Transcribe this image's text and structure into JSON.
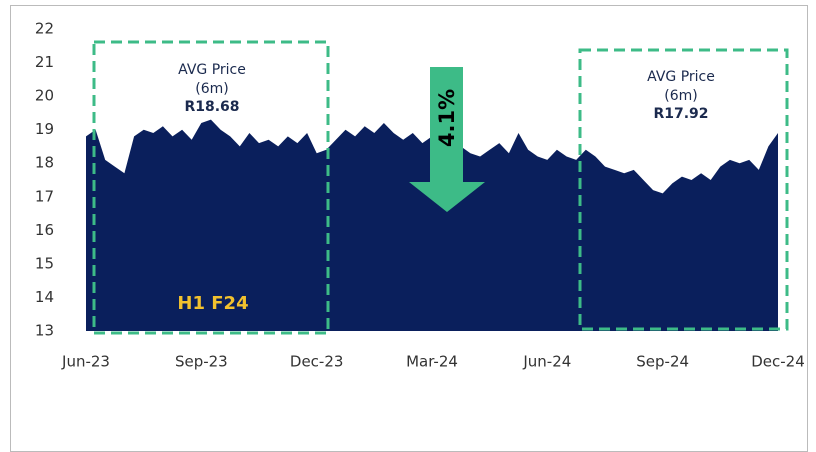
{
  "chart_data": {
    "type": "area",
    "categories": [
      "Jun-23",
      null,
      null,
      null,
      null,
      null,
      null,
      null,
      null,
      null,
      null,
      null,
      "Sep-23",
      null,
      null,
      null,
      null,
      null,
      null,
      null,
      null,
      null,
      null,
      null,
      "Dec-23",
      null,
      null,
      null,
      null,
      null,
      null,
      null,
      null,
      null,
      null,
      null,
      "Mar-24",
      null,
      null,
      null,
      null,
      null,
      null,
      null,
      null,
      null,
      null,
      null,
      "Jun-24",
      null,
      null,
      null,
      null,
      null,
      null,
      null,
      null,
      null,
      null,
      null,
      "Sep-24",
      null,
      null,
      null,
      null,
      null,
      null,
      null,
      null,
      null,
      null,
      null,
      "Dec-24"
    ],
    "values": [
      18.8,
      19.0,
      18.1,
      17.9,
      17.7,
      18.8,
      19.0,
      18.9,
      19.1,
      18.8,
      19.0,
      18.7,
      19.2,
      19.3,
      19.0,
      18.8,
      18.5,
      18.9,
      18.6,
      18.7,
      18.5,
      18.8,
      18.6,
      18.9,
      18.3,
      18.4,
      18.7,
      19.0,
      18.8,
      19.1,
      18.9,
      19.2,
      18.9,
      18.7,
      18.9,
      18.6,
      18.8,
      18.7,
      18.6,
      18.5,
      18.3,
      18.2,
      18.4,
      18.6,
      18.3,
      18.9,
      18.4,
      18.2,
      18.1,
      18.4,
      18.2,
      18.1,
      18.4,
      18.2,
      17.9,
      17.8,
      17.7,
      17.8,
      17.5,
      17.2,
      17.1,
      17.4,
      17.6,
      17.5,
      17.7,
      17.5,
      17.9,
      18.1,
      18.0,
      18.1,
      17.8,
      18.5,
      18.9
    ],
    "color": "#0a1f5c",
    "ylim": [
      13,
      22
    ],
    "yticks": [
      13,
      14,
      15,
      16,
      17,
      18,
      19,
      20,
      21,
      22
    ],
    "annotations": [
      "AVG Price",
      "(6m)",
      "R18.68",
      "AVG Price",
      "(6m)",
      "R17.92",
      "H1 F24",
      "4.1%"
    ]
  }
}
